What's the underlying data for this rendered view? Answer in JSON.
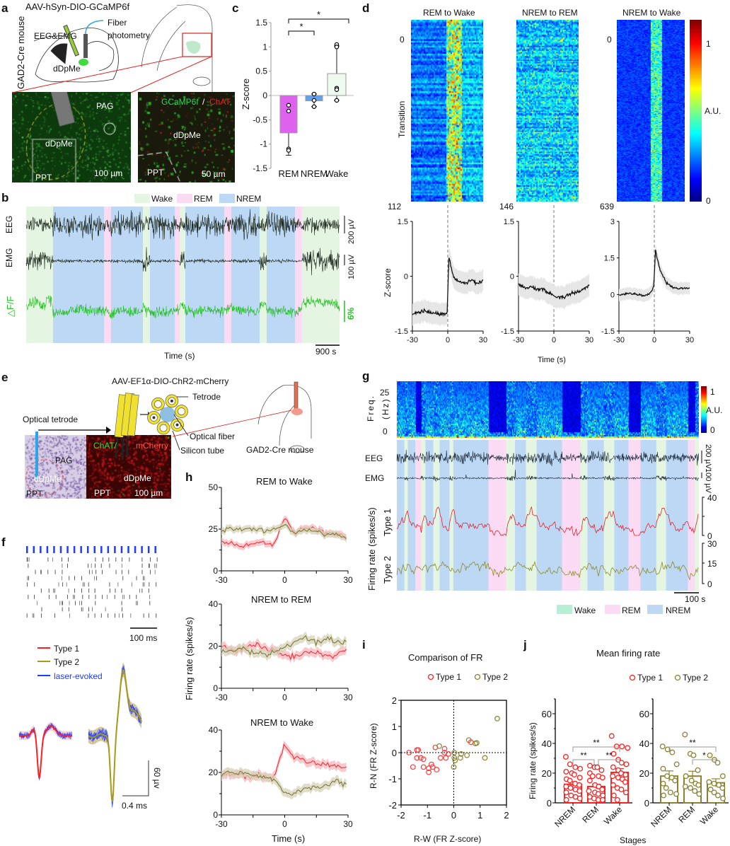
{
  "panels": {
    "a": "a",
    "b": "b",
    "c": "c",
    "d": "d",
    "e": "e",
    "f": "f",
    "g": "g",
    "h": "h",
    "i": "i",
    "j": "j"
  },
  "panel_a": {
    "virus": "AAV-hSyn-DIO-GCaMP6f",
    "mouse": "GAD2-Cre mouse",
    "eeg_emg": "EEG&EMG",
    "fiber": "Fiber",
    "photometry": "photometry",
    "region": "dDpMe",
    "img1": {
      "pag": "PAG",
      "region": "dDpMe",
      "ppt": "PPT",
      "scale": "100 µm"
    },
    "img2": {
      "green": "GCaMP6f",
      "slash": " /",
      "red": "ChAT",
      "region": "dDpMe",
      "ppt": "PPT",
      "scale": "50 µm"
    }
  },
  "colors": {
    "wake": "#e4f6e2",
    "rem": "#fbdaf3",
    "nrem": "#bcd8f4",
    "wake_legend_g": "#b6efd6",
    "type1": "#ff1f1f",
    "type2": "#8a8232",
    "laser": "#1f3cff",
    "bar_rem": "#de62ee",
    "bar_nrem": "#5ca2ee",
    "bar_wake": "#effaee",
    "dff": "#22c022"
  },
  "panel_b": {
    "legend": [
      "Wake",
      "REM",
      "NREM"
    ],
    "eeg": "EEG",
    "emg": "EMG",
    "dff": "△F/F",
    "eeg_scale": "200 µV",
    "emg_scale": "100 µV",
    "dff_scale": "6%",
    "xlabel": "Time (s)",
    "time_scale": "900 s",
    "stages": [
      [
        "Wake",
        0,
        760
      ],
      [
        "NREM",
        760,
        2200
      ],
      [
        "REM",
        2200,
        2400
      ],
      [
        "NREM",
        2400,
        3300
      ],
      [
        "Wake",
        3300,
        3500
      ],
      [
        "NREM",
        3500,
        4200
      ],
      [
        "REM",
        4200,
        4350
      ],
      [
        "Wake",
        4350,
        4500
      ],
      [
        "NREM",
        4500,
        5600
      ],
      [
        "REM",
        5600,
        5800
      ],
      [
        "NREM",
        5800,
        6600
      ],
      [
        "Wake",
        6600,
        6800
      ],
      [
        "NREM",
        6800,
        7600
      ],
      [
        "REM",
        7600,
        7800
      ],
      [
        "Wake",
        7800,
        8860
      ]
    ]
  },
  "panel_d": {
    "titles": [
      "REM to Wake",
      "NREM to REM",
      "NREM to Wake"
    ],
    "row_start": [
      "0",
      "",
      "0"
    ],
    "row_counts": [
      "112",
      "146",
      "639"
    ],
    "heatmap_ylabel": "Transition",
    "colorbar": {
      "max": "1",
      "label": "A.U.",
      "min": "0"
    },
    "ylabel": "Z-score",
    "xlabel": "Time (s)"
  },
  "panel_e": {
    "virus": "AAV-EF1α-DIO-ChR2-mCherry",
    "optical_tetrode": "Optical tetrode",
    "tetrode": "Tetrode",
    "optical_fiber": "Optical fiber",
    "silicon_tube": "Silicon tube",
    "mouse": "GAD2-Cre mouse",
    "img1": {
      "pag": "PAG",
      "region": "dDpMe",
      "ppt": "PPT"
    },
    "img2": {
      "green": "ChAT/",
      "red": "mCherry",
      "region": "dDpMe",
      "ppt": "PPT",
      "scale": "100 µm"
    }
  },
  "panel_f": {
    "time_scale": "100 ms",
    "legend": [
      "Type 1",
      "Type 2",
      "laser-evoked"
    ],
    "amp_scale": "60 µv",
    "wave_time_scale": "0.4 ms",
    "laser_pulses": 20,
    "trials": 10
  },
  "panel_g": {
    "freq_label": "Freq.",
    "hz_label": "(Hz)",
    "freq_ticks": [
      "25",
      "0"
    ],
    "colorbar": {
      "max": "1",
      "label": "A.U.",
      "min": "0"
    },
    "eeg": "EEG",
    "emg": "EMG",
    "eeg_scale": "200 µV",
    "emg_scale": "100 µV",
    "ylabel": "Firing rate (spikes/s)",
    "type1": "Type 1",
    "type2": "Type 2",
    "type1_ticks": [
      "40",
      "0"
    ],
    "type2_ticks": [
      "30",
      "15",
      "0"
    ],
    "time_scale": "100 s",
    "legend": [
      "Wake",
      "REM",
      "NREM"
    ],
    "stages": [
      [
        "NREM",
        0,
        23
      ],
      [
        "Wake",
        23,
        33
      ],
      [
        "NREM",
        33,
        56
      ],
      [
        "REM",
        56,
        74
      ],
      [
        "Wake",
        74,
        86
      ],
      [
        "NREM",
        86,
        110
      ],
      [
        "Wake",
        110,
        129
      ],
      [
        "NREM",
        129,
        159
      ],
      [
        "Wake",
        159,
        170
      ],
      [
        "NREM",
        170,
        276
      ],
      [
        "REM",
        276,
        330
      ],
      [
        "Wake",
        330,
        356
      ],
      [
        "NREM",
        356,
        389
      ],
      [
        "Wake",
        389,
        421
      ],
      [
        "NREM",
        421,
        498
      ],
      [
        "REM",
        498,
        553
      ],
      [
        "Wake",
        553,
        574
      ],
      [
        "NREM",
        574,
        624
      ],
      [
        "Wake",
        624,
        655
      ],
      [
        "NREM",
        655,
        698
      ],
      [
        "REM",
        698,
        734
      ],
      [
        "NREM",
        734,
        782
      ],
      [
        "Wake",
        782,
        811
      ],
      [
        "NREM",
        811,
        877
      ],
      [
        "REM",
        877,
        898
      ],
      [
        "Wake",
        898,
        910
      ]
    ]
  },
  "chart_data": [
    {
      "id": "c",
      "type": "bar",
      "categories": [
        "REM",
        "NREM",
        "Wake"
      ],
      "values": [
        -0.77,
        -0.11,
        0.45
      ],
      "whiskers": [
        [
          -1.23,
          0
        ],
        [
          -0.23,
          0.03
        ],
        [
          -0.1,
          1.02
        ]
      ],
      "points": [
        [
          -0.2,
          -0.32,
          -1.1,
          -1.13
        ],
        [
          0.03,
          -0.1,
          -0.23
        ],
        [
          1.05,
          1.0,
          0.15,
          0.12,
          -0.1
        ]
      ],
      "ylabel": "Z-score",
      "ylim": [
        -1.5,
        1.5
      ],
      "yticks": [
        "1.5",
        "1",
        "0.5",
        "0",
        "-0.5",
        "-1",
        "-1.5"
      ],
      "significance": [
        {
          "pair": [
            "REM",
            "NREM"
          ],
          "label": "*"
        },
        {
          "pair": [
            "REM",
            "Wake"
          ],
          "label": "*"
        }
      ]
    },
    {
      "id": "d",
      "type": "line",
      "x": [
        -30,
        -25,
        -20,
        -15,
        -10,
        -5,
        -0.5,
        1,
        5,
        10,
        15,
        20,
        25,
        30
      ],
      "xticks": [
        "-30",
        "0",
        "30"
      ],
      "series": [
        {
          "title": "REM to Wake",
          "values": [
            -1.05,
            -1.0,
            -0.95,
            -1.0,
            -1.0,
            -1.05,
            -1.0,
            0.55,
            -0.05,
            -0.15,
            -0.2,
            -0.1,
            -0.2,
            -0.1
          ],
          "ylim": [
            -1.5,
            1.5
          ],
          "yticks": [
            "1.5",
            "0",
            "-1.5"
          ]
        },
        {
          "title": "NREM to REM",
          "values": [
            -0.25,
            -0.3,
            -0.3,
            -0.35,
            -0.35,
            -0.45,
            -0.5,
            -0.55,
            -0.6,
            -0.55,
            -0.45,
            -0.45,
            -0.35,
            -0.25
          ],
          "ylim": [
            -1.5,
            1.5
          ],
          "yticks": [
            "1.5",
            "0",
            "-1.5"
          ]
        },
        {
          "title": "NREM to Wake",
          "values": [
            0.0,
            0.0,
            0.05,
            0.0,
            -0.05,
            0.0,
            0.3,
            1.8,
            1.0,
            0.5,
            0.3,
            0.25,
            0.25,
            0.25
          ],
          "ylim": [
            -1.5,
            3
          ],
          "yticks": [
            "3",
            "1.5",
            "0",
            "-1.5"
          ]
        }
      ],
      "ylabel": "Z-score",
      "xlabel": "Time (s)"
    },
    {
      "id": "h",
      "type": "line",
      "x": [
        -30,
        -25,
        -20,
        -15,
        -10,
        -5,
        0,
        5,
        10,
        15,
        20,
        25,
        30
      ],
      "xticks": [
        "-30",
        "0",
        "30"
      ],
      "panels": [
        {
          "title": "REM to Wake",
          "ylim": [
            0,
            50
          ],
          "yticks": [
            "50",
            "25",
            "0"
          ],
          "series": [
            {
              "name": "Type 1",
              "values": [
                17,
                16,
                15,
                17,
                17,
                16,
                32,
                22,
                26,
                25,
                22,
                22,
                19
              ]
            },
            {
              "name": "Type 2",
              "values": [
                23,
                26,
                24,
                25,
                24,
                25,
                27,
                22,
                25,
                24,
                21,
                22,
                20
              ]
            }
          ]
        },
        {
          "title": "NREM to REM",
          "ylim": [
            0,
            40
          ],
          "yticks": [
            "40",
            "20",
            "0"
          ],
          "series": [
            {
              "name": "Type 1",
              "values": [
                20,
                18,
                19,
                21,
                19,
                18,
                16,
                15,
                17,
                17,
                15,
                16,
                19
              ]
            },
            {
              "name": "Type 2",
              "values": [
                17,
                17,
                19,
                17,
                16,
                17,
                20,
                22,
                24,
                22,
                24,
                22,
                22
              ]
            }
          ]
        },
        {
          "title": "NREM to Wake",
          "ylim": [
            0,
            40
          ],
          "yticks": [
            "40",
            "20",
            "0"
          ],
          "series": [
            {
              "name": "Type 1",
              "values": [
                19,
                19,
                19,
                19,
                18,
                17,
                33,
                27,
                25,
                24,
                24,
                22,
                22
              ]
            },
            {
              "name": "Type 2",
              "values": [
                19,
                20,
                19,
                19,
                18,
                17,
                11,
                10,
                13,
                13,
                14,
                16,
                14
              ]
            }
          ]
        }
      ],
      "ylabel": "Firing rate (spikes/s)",
      "xlabel": "Time (s)"
    },
    {
      "id": "i",
      "type": "scatter",
      "title": "Comparison of FR",
      "xlabel": "R-W (FR Z-score)",
      "ylabel": "R-N (FR Z-score)",
      "xlim": [
        -2,
        2
      ],
      "ylim": [
        -2,
        2
      ],
      "xticks": [
        "-2",
        "-1",
        "0",
        "1",
        "2"
      ],
      "yticks": [
        "2",
        "1",
        "0",
        "-1",
        "-2"
      ],
      "series": [
        {
          "name": "Type 1",
          "points": [
            [
              -1.7,
              0
            ],
            [
              -1.4,
              0.1
            ],
            [
              -1.35,
              0.1
            ],
            [
              -1.4,
              -0.2
            ],
            [
              -1.25,
              -0.2
            ],
            [
              -1.15,
              -0.25
            ],
            [
              -1.55,
              -0.55
            ],
            [
              -1.15,
              -0.55
            ],
            [
              -0.95,
              -0.6
            ],
            [
              -0.85,
              -0.45
            ],
            [
              -0.8,
              -0.55
            ],
            [
              -0.95,
              -0.75
            ],
            [
              -0.65,
              -0.65
            ],
            [
              -0.7,
              0.2
            ],
            [
              -0.35,
              0.15
            ],
            [
              -0.35,
              0.0
            ],
            [
              -0.5,
              -0.2
            ],
            [
              -0.3,
              -0.2
            ],
            [
              -0.2,
              -0.05
            ],
            [
              0.65,
              0.4
            ]
          ]
        },
        {
          "name": "Type 2",
          "points": [
            [
              -0.55,
              0.25
            ],
            [
              0.02,
              0.0
            ],
            [
              0.02,
              -0.2
            ],
            [
              0.05,
              -0.3
            ],
            [
              0.0,
              -0.55
            ],
            [
              0.28,
              -0.05
            ],
            [
              0.25,
              -0.2
            ],
            [
              0.5,
              -0.1
            ],
            [
              0.57,
              0.48
            ],
            [
              0.82,
              0.35
            ],
            [
              0.87,
              0.37
            ],
            [
              1.18,
              -0.2
            ],
            [
              1.65,
              1.3
            ]
          ]
        }
      ]
    },
    {
      "id": "j",
      "type": "bar",
      "title": "Mean firing rate",
      "xlabel": "Stages",
      "ylabel": "Firing rate (spikes/s)",
      "categories": [
        "NREM",
        "REM",
        "Wake"
      ],
      "ylim": [
        0,
        70
      ],
      "yticks": [
        "60",
        "40",
        "20",
        "0"
      ],
      "legend": [
        "Type 1",
        "Type 2"
      ],
      "series": [
        {
          "name": "Type 1",
          "values": [
            12.5,
            11,
            20.5
          ],
          "sem": [
            1.7,
            1.5,
            2.5
          ],
          "points": [
            [
              31,
              26,
              24,
              23,
              21,
              20,
              19,
              17,
              16,
              15,
              13,
              12,
              11,
              10,
              9,
              8,
              7,
              5,
              4,
              3,
              2
            ],
            [
              25,
              24,
              24,
              22,
              20,
              18,
              18,
              17,
              15,
              12,
              11,
              9,
              8,
              7,
              6,
              5,
              4,
              3,
              2,
              2
            ],
            [
              45,
              38,
              38,
              37,
              33,
              29,
              27,
              26,
              24,
              22,
              20,
              19,
              18,
              17,
              16,
              14,
              12,
              10,
              9,
              7,
              5,
              2
            ]
          ],
          "significance": [
            {
              "pair": [
                "NREM",
                "Wake"
              ],
              "label": "**"
            },
            {
              "pair": [
                "NREM",
                "REM"
              ],
              "label": "**"
            },
            {
              "pair": [
                "REM",
                "Wake"
              ],
              "label": "**"
            }
          ]
        },
        {
          "name": "Type 2",
          "values": [
            18,
            18,
            13.5
          ],
          "sem": [
            3.5,
            3.3,
            2.7
          ],
          "points": [
            [
              38,
              36,
              34,
              26,
              23,
              18,
              17,
              15,
              13,
              10,
              7,
              6,
              5
            ],
            [
              46,
              33,
              32,
              22,
              18,
              15,
              13,
              12,
              11,
              10,
              8,
              6
            ],
            [
              32,
              29,
              27,
              18,
              14,
              13,
              12,
              10,
              9,
              7,
              5,
              3
            ]
          ],
          "significance": [
            {
              "pair": [
                "NREM",
                "Wake"
              ],
              "label": "**"
            },
            {
              "pair": [
                "REM",
                "Wake"
              ],
              "label": "*"
            }
          ]
        }
      ]
    }
  ]
}
